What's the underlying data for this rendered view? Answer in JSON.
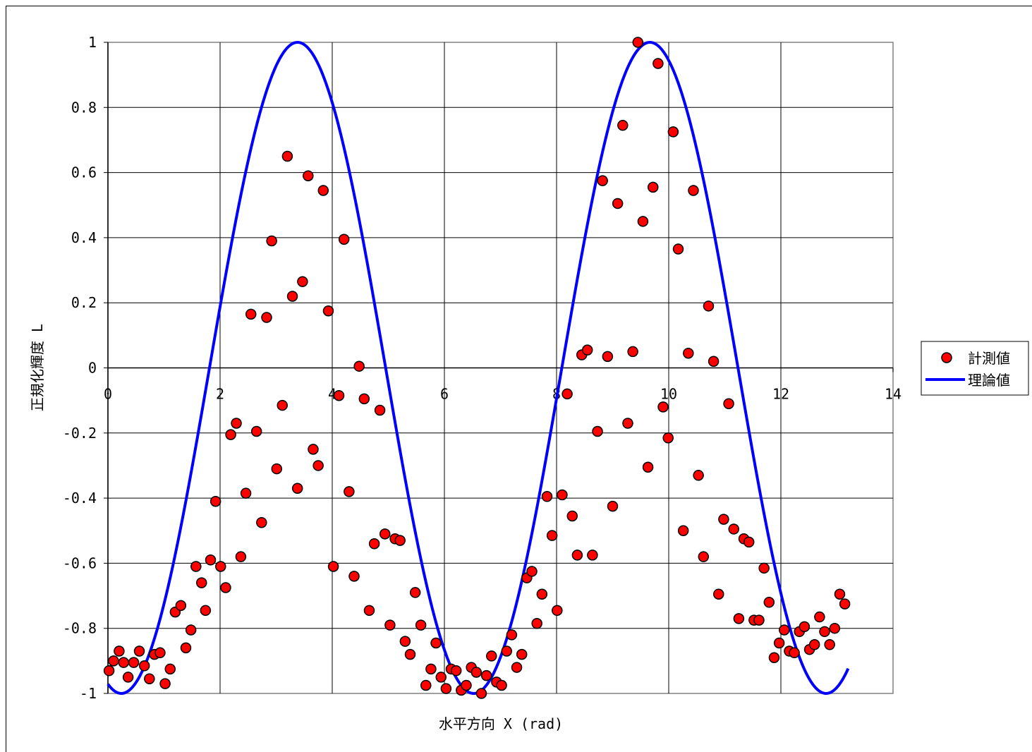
{
  "chart_data": {
    "type": "scatter",
    "xlabel": "水平方向 X (rad)",
    "ylabel": "正規化輝度 L",
    "xlim": [
      0,
      14
    ],
    "ylim": [
      -1,
      1
    ],
    "x_ticks": [
      "0",
      "2",
      "4",
      "6",
      "8",
      "10",
      "12",
      "14"
    ],
    "y_ticks": [
      "-1",
      "-0.8",
      "-0.6",
      "-0.4",
      "-0.2",
      "0",
      "0.2",
      "0.4",
      "0.6",
      "0.8",
      "1"
    ],
    "grid": true,
    "legend_position": "right",
    "series": [
      {
        "name": "計測値",
        "kind": "scatter",
        "color": "#ff0000",
        "edge_color": "#000000",
        "points": [
          [
            0.02,
            -0.93
          ],
          [
            0.1,
            -0.9
          ],
          [
            0.2,
            -0.87
          ],
          [
            0.28,
            -0.905
          ],
          [
            0.36,
            -0.95
          ],
          [
            0.46,
            -0.905
          ],
          [
            0.56,
            -0.87
          ],
          [
            0.65,
            -0.915
          ],
          [
            0.74,
            -0.955
          ],
          [
            0.83,
            -0.88
          ],
          [
            0.93,
            -0.875
          ],
          [
            1.02,
            -0.97
          ],
          [
            1.11,
            -0.925
          ],
          [
            1.2,
            -0.75
          ],
          [
            1.3,
            -0.73
          ],
          [
            1.39,
            -0.86
          ],
          [
            1.48,
            -0.805
          ],
          [
            1.57,
            -0.61
          ],
          [
            1.67,
            -0.66
          ],
          [
            1.74,
            -0.745
          ],
          [
            1.83,
            -0.59
          ],
          [
            1.92,
            -0.41
          ],
          [
            2.01,
            -0.61
          ],
          [
            2.1,
            -0.675
          ],
          [
            2.19,
            -0.205
          ],
          [
            2.29,
            -0.17
          ],
          [
            2.37,
            -0.58
          ],
          [
            2.46,
            -0.385
          ],
          [
            2.55,
            0.165
          ],
          [
            2.65,
            -0.195
          ],
          [
            2.74,
            -0.475
          ],
          [
            2.83,
            0.155
          ],
          [
            2.92,
            0.39
          ],
          [
            3.01,
            -0.31
          ],
          [
            3.11,
            -0.115
          ],
          [
            3.2,
            0.65
          ],
          [
            3.29,
            0.22
          ],
          [
            3.38,
            -0.37
          ],
          [
            3.47,
            0.265
          ],
          [
            3.57,
            0.59
          ],
          [
            3.66,
            -0.25
          ],
          [
            3.75,
            -0.3
          ],
          [
            3.84,
            0.545
          ],
          [
            3.93,
            0.175
          ],
          [
            4.02,
            -0.61
          ],
          [
            4.12,
            -0.085
          ],
          [
            4.21,
            0.395
          ],
          [
            4.3,
            -0.38
          ],
          [
            4.39,
            -0.64
          ],
          [
            4.48,
            0.005
          ],
          [
            4.57,
            -0.095
          ],
          [
            4.66,
            -0.745
          ],
          [
            4.75,
            -0.54
          ],
          [
            4.85,
            -0.13
          ],
          [
            4.94,
            -0.51
          ],
          [
            5.03,
            -0.79
          ],
          [
            5.12,
            -0.525
          ],
          [
            5.21,
            -0.53
          ],
          [
            5.3,
            -0.84
          ],
          [
            5.39,
            -0.88
          ],
          [
            5.48,
            -0.69
          ],
          [
            5.58,
            -0.79
          ],
          [
            5.67,
            -0.975
          ],
          [
            5.76,
            -0.925
          ],
          [
            5.85,
            -0.845
          ],
          [
            5.94,
            -0.95
          ],
          [
            6.03,
            -0.985
          ],
          [
            6.12,
            -0.925
          ],
          [
            6.21,
            -0.93
          ],
          [
            6.3,
            -0.99
          ],
          [
            6.39,
            -0.975
          ],
          [
            6.48,
            -0.92
          ],
          [
            6.57,
            -0.935
          ],
          [
            6.66,
            -1.0
          ],
          [
            6.75,
            -0.945
          ],
          [
            6.84,
            -0.885
          ],
          [
            6.93,
            -0.965
          ],
          [
            7.02,
            -0.975
          ],
          [
            7.11,
            -0.87
          ],
          [
            7.2,
            -0.82
          ],
          [
            7.29,
            -0.92
          ],
          [
            7.38,
            -0.88
          ],
          [
            7.47,
            -0.645
          ],
          [
            7.56,
            -0.625
          ],
          [
            7.65,
            -0.785
          ],
          [
            7.74,
            -0.695
          ],
          [
            7.83,
            -0.395
          ],
          [
            7.92,
            -0.515
          ],
          [
            8.01,
            -0.745
          ],
          [
            8.1,
            -0.39
          ],
          [
            8.19,
            -0.08
          ],
          [
            8.28,
            -0.455
          ],
          [
            8.37,
            -0.575
          ],
          [
            8.45,
            0.04
          ],
          [
            8.55,
            0.055
          ],
          [
            8.64,
            -0.575
          ],
          [
            8.73,
            -0.195
          ],
          [
            8.82,
            0.575
          ],
          [
            8.91,
            0.035
          ],
          [
            9.0,
            -0.425
          ],
          [
            9.09,
            0.505
          ],
          [
            9.18,
            0.745
          ],
          [
            9.27,
            -0.17
          ],
          [
            9.36,
            0.05
          ],
          [
            9.45,
            1.0
          ],
          [
            9.54,
            0.45
          ],
          [
            9.63,
            -0.305
          ],
          [
            9.72,
            0.555
          ],
          [
            9.81,
            0.935
          ],
          [
            9.9,
            -0.12
          ],
          [
            9.99,
            -0.215
          ],
          [
            10.08,
            0.725
          ],
          [
            10.17,
            0.365
          ],
          [
            10.26,
            -0.5
          ],
          [
            10.35,
            0.045
          ],
          [
            10.44,
            0.545
          ],
          [
            10.53,
            -0.33
          ],
          [
            10.62,
            -0.58
          ],
          [
            10.71,
            0.19
          ],
          [
            10.8,
            0.02
          ],
          [
            10.89,
            -0.695
          ],
          [
            10.98,
            -0.465
          ],
          [
            11.07,
            -0.11
          ],
          [
            11.16,
            -0.495
          ],
          [
            11.25,
            -0.77
          ],
          [
            11.34,
            -0.525
          ],
          [
            11.43,
            -0.535
          ],
          [
            11.52,
            -0.775
          ],
          [
            11.61,
            -0.775
          ],
          [
            11.7,
            -0.615
          ],
          [
            11.79,
            -0.72
          ],
          [
            11.88,
            -0.89
          ],
          [
            11.97,
            -0.845
          ],
          [
            12.06,
            -0.805
          ],
          [
            12.15,
            -0.87
          ],
          [
            12.24,
            -0.875
          ],
          [
            12.33,
            -0.81
          ],
          [
            12.42,
            -0.795
          ],
          [
            12.51,
            -0.865
          ],
          [
            12.6,
            -0.85
          ],
          [
            12.69,
            -0.765
          ],
          [
            12.78,
            -0.81
          ],
          [
            12.87,
            -0.85
          ],
          [
            12.96,
            -0.8
          ],
          [
            13.05,
            -0.695
          ],
          [
            13.14,
            -0.725
          ]
        ]
      },
      {
        "name": "理論値",
        "kind": "line",
        "color": "#0000ff",
        "function": "y = -cos(x - 0.24)",
        "x_range": [
          0,
          13.2
        ]
      }
    ]
  }
}
